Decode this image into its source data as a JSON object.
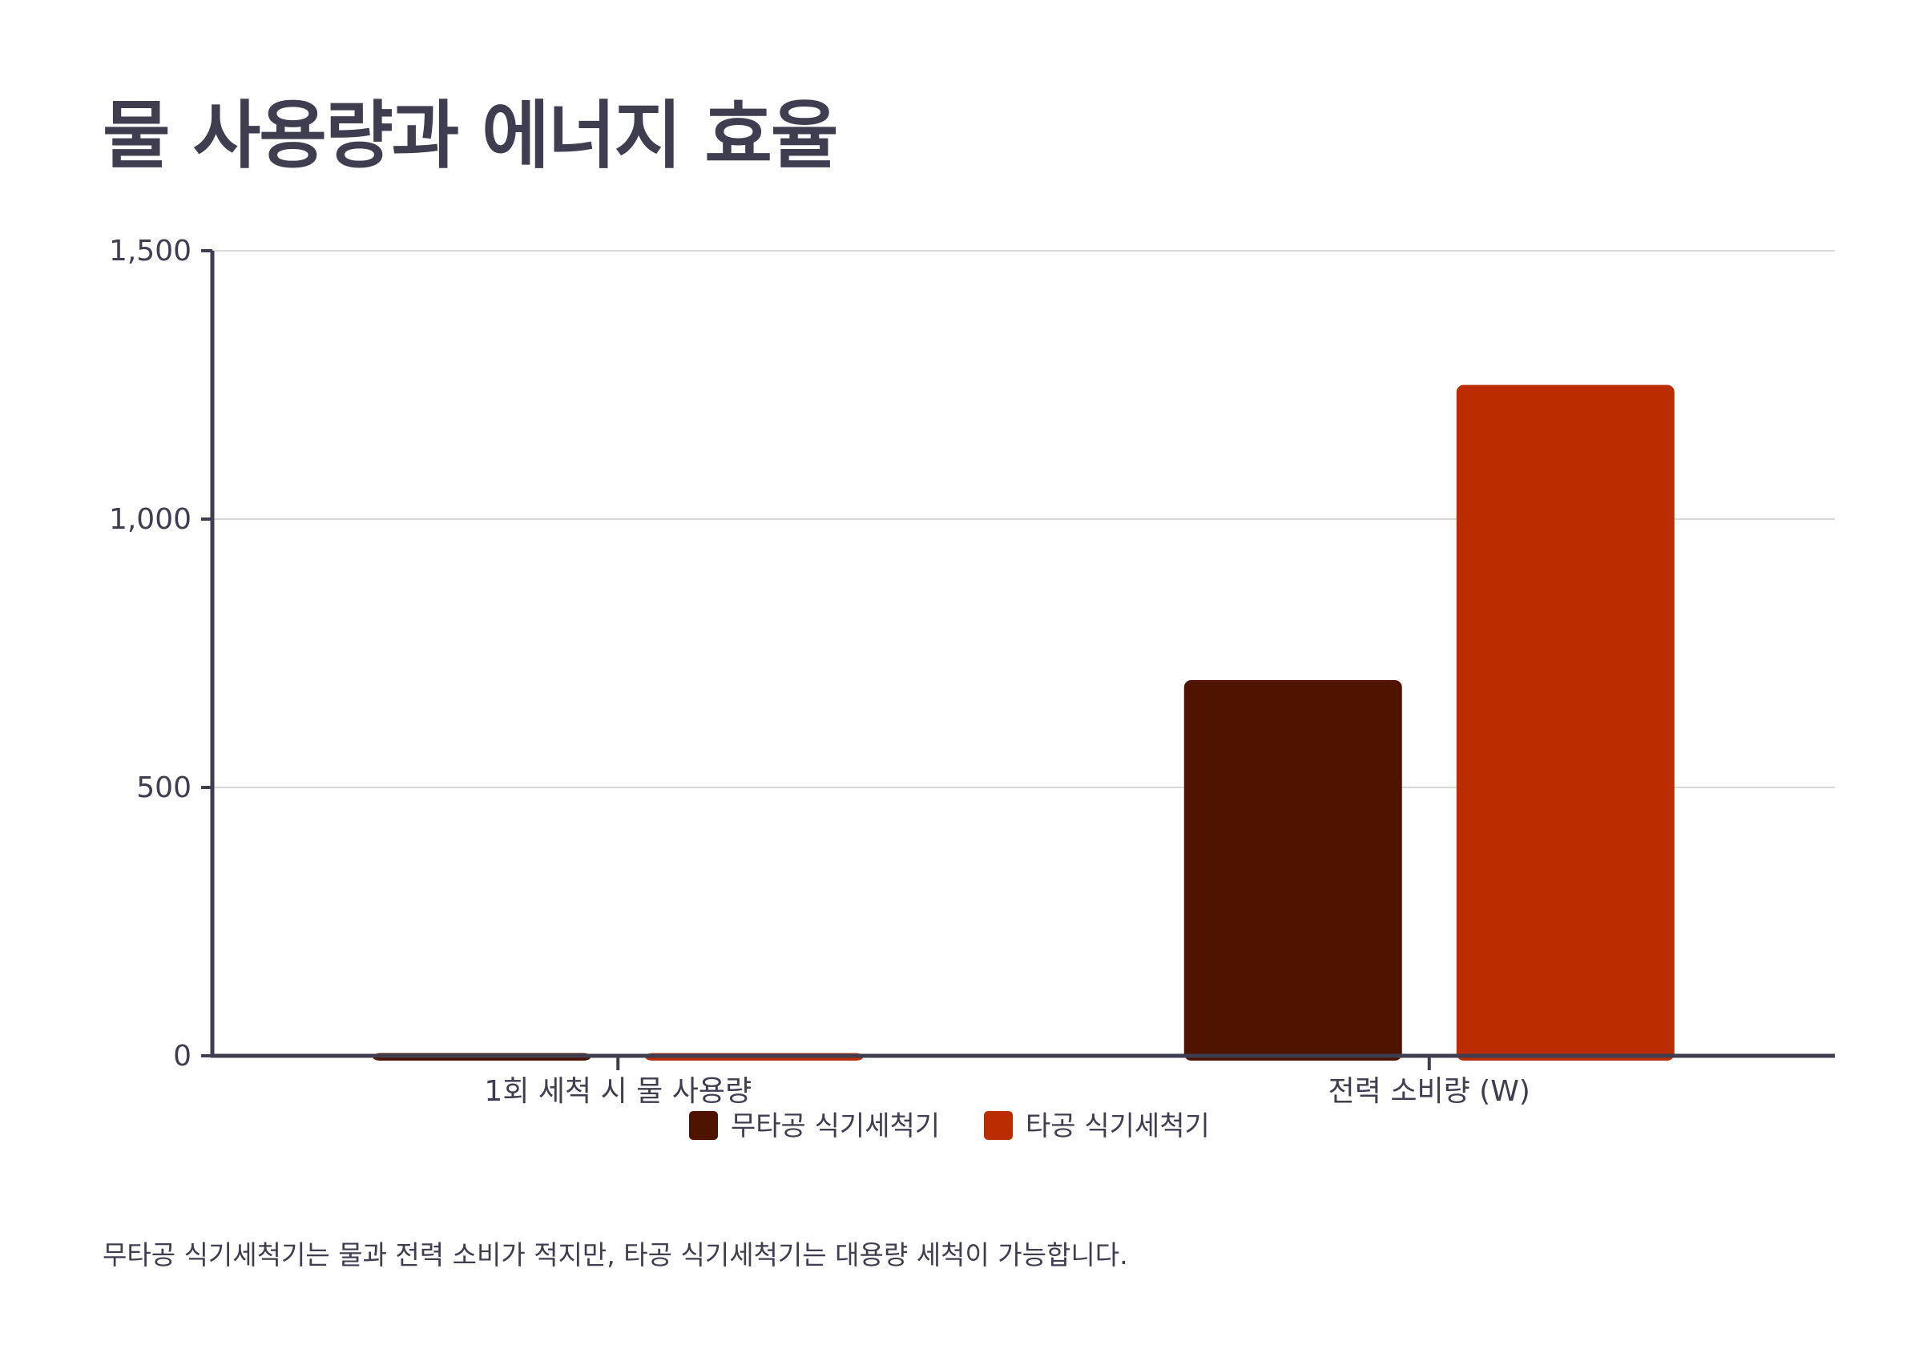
{
  "title": "물 사용량과 에너지 효율",
  "footnote": "무타공 식기세척기는 물과 전력 소비가 적지만, 타공 식기세척기는 대용량 세척이 가능합니다.",
  "chart_data": {
    "type": "bar",
    "categories": [
      "1회 세척 시 물 사용량",
      "전력 소비량 (W)"
    ],
    "series": [
      {
        "name": "무타공 식기세척기",
        "values": [
          5,
          700
        ],
        "color": "#4e1400"
      },
      {
        "name": "타공 식기세척기",
        "values": [
          5,
          1250
        ],
        "color": "#bb2c00"
      }
    ],
    "ylim": [
      0,
      1500
    ],
    "yticks": [
      0,
      500,
      1000,
      1500
    ],
    "ytick_labels": [
      "0",
      "500",
      "1,000",
      "1,500"
    ],
    "grid": true,
    "legend": "bottom-center",
    "axis_color": "#3f3d50",
    "grid_color": "#d9d9d9"
  }
}
